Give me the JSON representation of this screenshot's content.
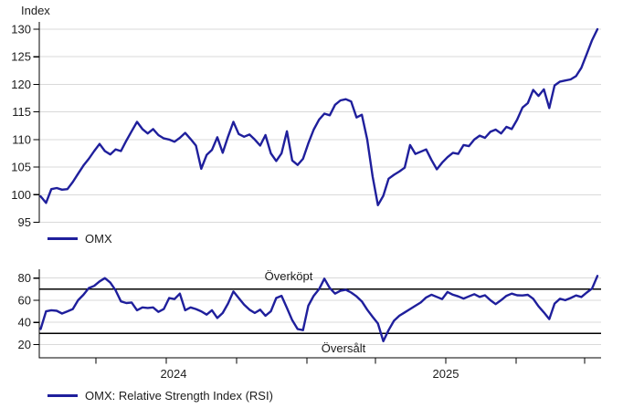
{
  "colors": {
    "line": "#1f1f9c",
    "grid": "#d9d9d9",
    "axis": "#000000",
    "text": "#1c1c1c",
    "background": "#ffffff"
  },
  "chart_data": [
    {
      "type": "line",
      "axis_title": "Index",
      "legend": {
        "label": "OMX",
        "position": "bottom-left"
      },
      "ylim": [
        95,
        130
      ],
      "yticks": [
        95,
        100,
        105,
        110,
        115,
        120,
        125,
        130
      ],
      "grid": true,
      "series": [
        {
          "name": "OMX",
          "color": "#1f1f9c",
          "values": [
            99.7,
            98.5,
            101.0,
            101.2,
            100.9,
            101.0,
            102.3,
            103.8,
            105.3,
            106.5,
            107.9,
            109.2,
            107.9,
            107.3,
            108.2,
            107.9,
            109.8,
            111.5,
            113.2,
            111.9,
            111.1,
            111.9,
            110.8,
            110.2,
            110.0,
            109.6,
            110.3,
            111.2,
            110.1,
            108.9,
            104.7,
            107.2,
            108.1,
            110.4,
            107.6,
            110.5,
            113.2,
            111.0,
            110.5,
            110.9,
            110.0,
            108.9,
            110.8,
            107.5,
            106.1,
            107.5,
            111.5,
            106.2,
            105.4,
            106.5,
            109.3,
            111.8,
            113.6,
            114.7,
            114.4,
            116.3,
            117.1,
            117.3,
            116.9,
            114.0,
            114.5,
            110.0,
            103.3,
            98.1,
            99.8,
            102.9,
            103.6,
            104.2,
            104.9,
            109.0,
            107.4,
            107.8,
            108.2,
            106.3,
            104.6,
            105.8,
            106.8,
            107.6,
            107.4,
            109.0,
            108.8,
            110.0,
            110.7,
            110.3,
            111.4,
            111.8,
            111.1,
            112.3,
            111.9,
            113.6,
            115.8,
            116.6,
            119.0,
            117.9,
            119.1,
            115.7,
            119.8,
            120.5,
            120.7,
            120.9,
            121.5,
            123.0,
            125.5,
            128.0,
            130.0
          ]
        }
      ]
    },
    {
      "type": "line",
      "legend": {
        "label": "OMX: Relative Strength Index (RSI)",
        "position": "bottom-left"
      },
      "ylim": [
        8,
        88
      ],
      "yticks": [
        20,
        40,
        60,
        80
      ],
      "grid": true,
      "reference_lines": [
        {
          "value": 70,
          "label": "Överköpt",
          "color": "#000000"
        },
        {
          "value": 30,
          "label": "Översålt",
          "color": "#000000"
        }
      ],
      "x_year_labels": [
        "2024",
        "2025"
      ],
      "series": [
        {
          "name": "OMX: Relative Strength Index (RSI)",
          "color": "#1f1f9c",
          "values": [
            34,
            50,
            51,
            50.5,
            48,
            50,
            52,
            60,
            65,
            71,
            73,
            77,
            80,
            76,
            69,
            59,
            57.5,
            58,
            51,
            53.5,
            53,
            53.5,
            49.5,
            52,
            62,
            61,
            66,
            51,
            53.5,
            52,
            50,
            47,
            51,
            44,
            48.5,
            57,
            68,
            62,
            56,
            51.5,
            48.5,
            51.5,
            46,
            50,
            62,
            64,
            53,
            42,
            34,
            33,
            55,
            64,
            70,
            79.5,
            71,
            66,
            68.5,
            69.5,
            67,
            63.5,
            59,
            51.5,
            45,
            39,
            23,
            33,
            41.5,
            46,
            49,
            52,
            55,
            58,
            62.5,
            65,
            63,
            61,
            67.5,
            65,
            63.5,
            61.5,
            63.5,
            65.5,
            63,
            64.5,
            60,
            56.5,
            60,
            64,
            66,
            64.5,
            64.3,
            64.9,
            61.4,
            54.5,
            49,
            43,
            57,
            61.4,
            60,
            62,
            64.3,
            62.9,
            67,
            70.5,
            82
          ]
        }
      ]
    }
  ]
}
